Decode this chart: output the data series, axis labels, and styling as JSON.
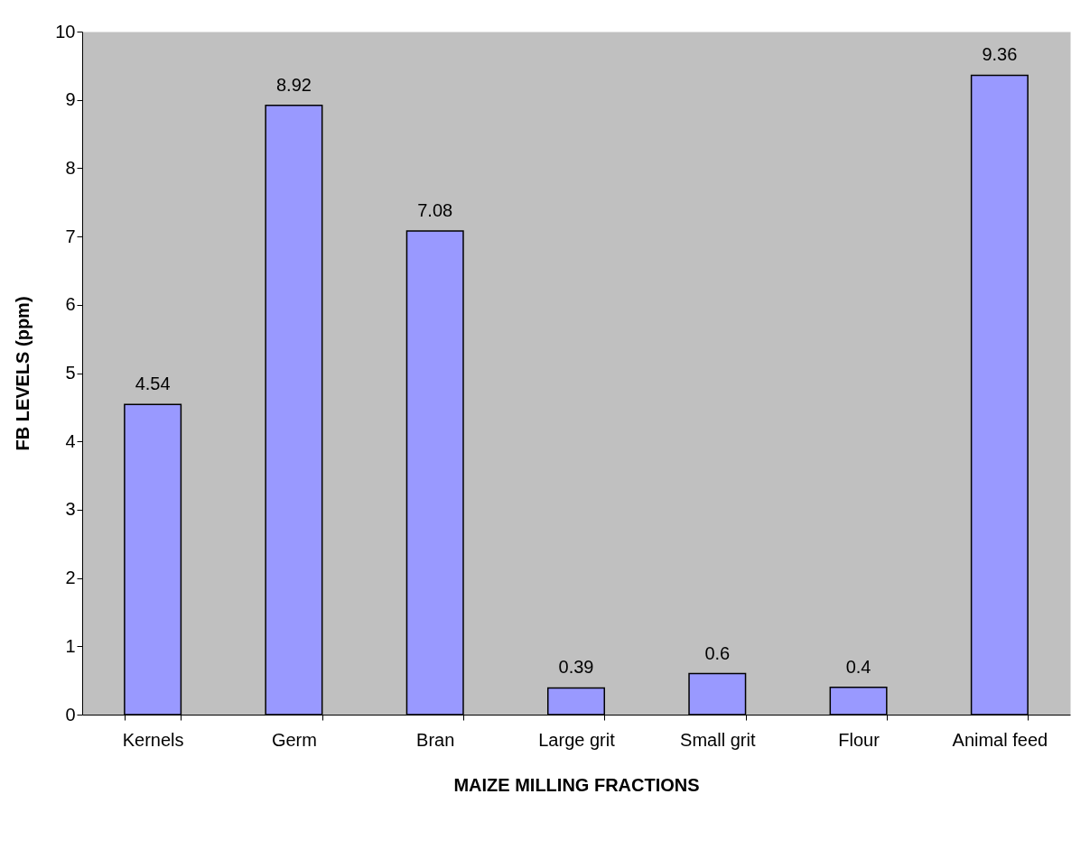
{
  "chart_data": {
    "type": "bar",
    "xlabel": "MAIZE MILLING FRACTIONS",
    "ylabel": "FB LEVELS (ppm)",
    "categories": [
      "Kernels",
      "Germ",
      "Bran",
      "Large grit",
      "Small grit",
      "Flour",
      "Animal feed"
    ],
    "values": [
      4.54,
      8.92,
      7.08,
      0.39,
      0.6,
      0.4,
      9.36
    ],
    "color": "#9999ff",
    "ylim": [
      0,
      10
    ],
    "yticks": [
      0,
      1,
      2,
      3,
      4,
      5,
      6,
      7,
      8,
      9,
      10
    ],
    "data_labels": true,
    "grid": false
  }
}
